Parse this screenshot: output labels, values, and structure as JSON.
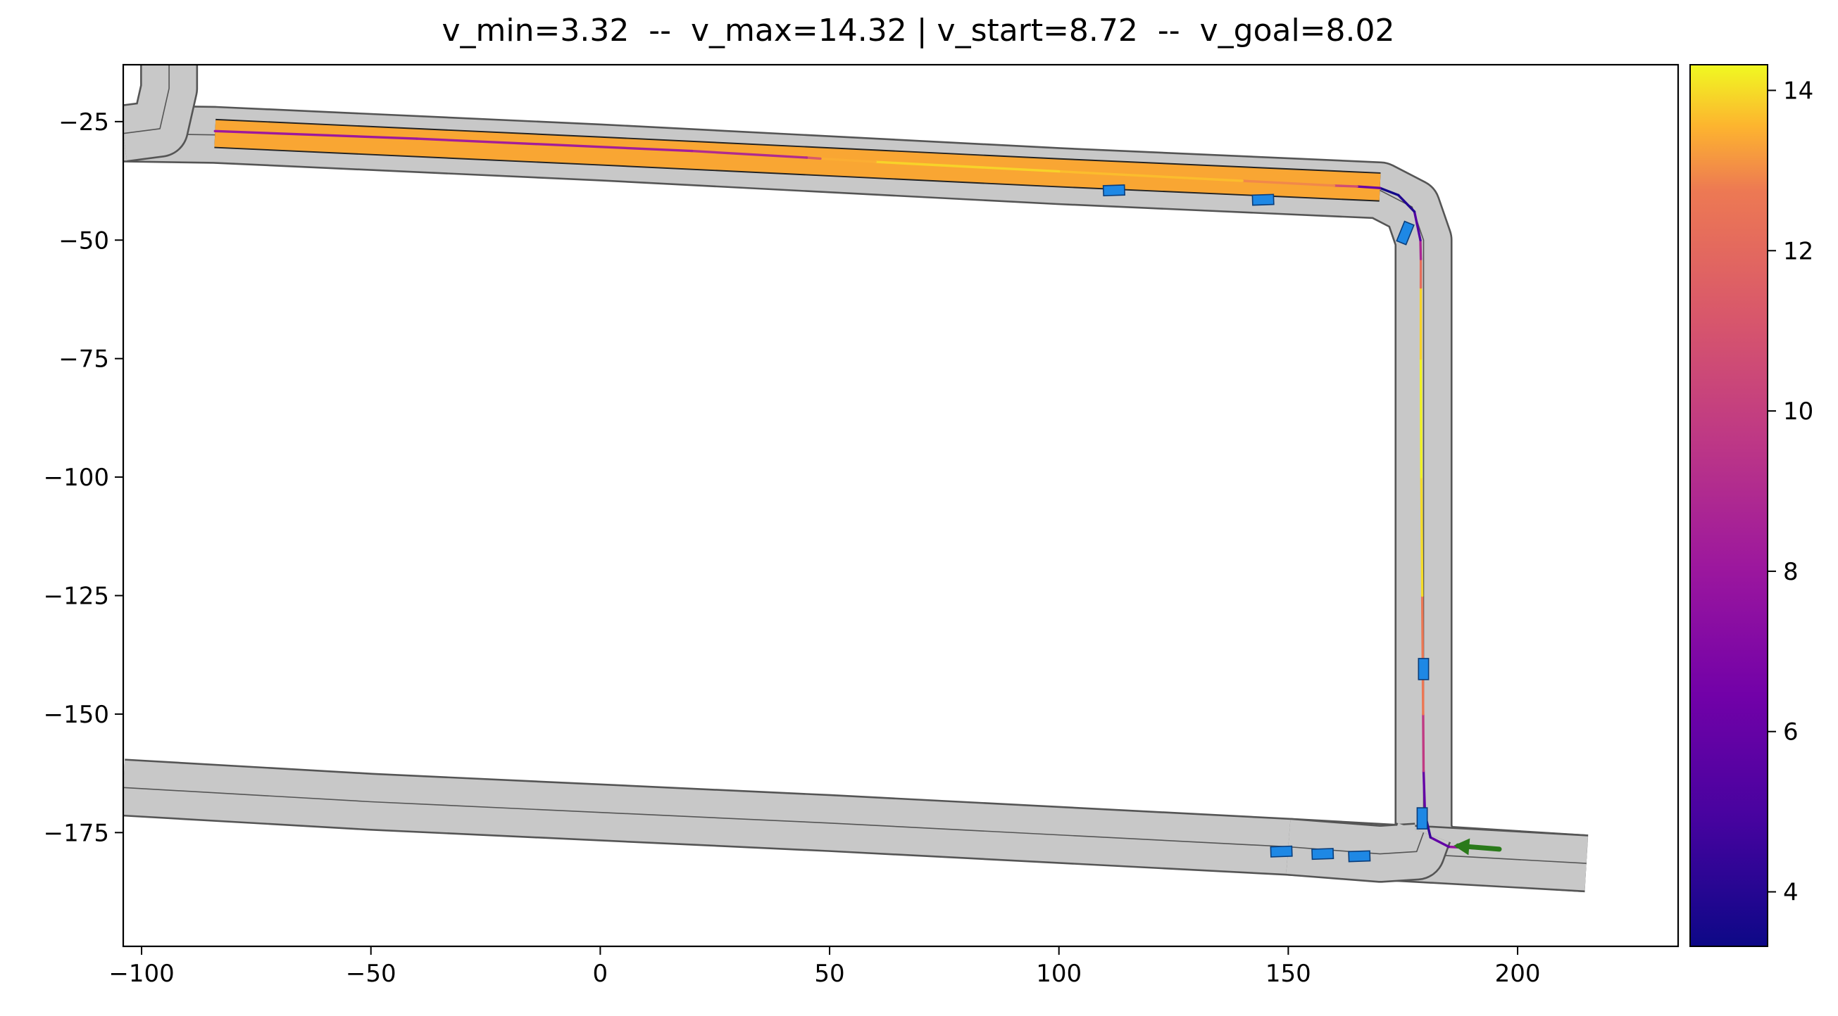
{
  "chart_data": {
    "type": "line",
    "title": "v_min=3.32  --  v_max=14.32 | v_start=8.72  --  v_goal=8.02",
    "xlabel": "",
    "ylabel": "",
    "xlim": [
      -104,
      235
    ],
    "ylim": [
      -199,
      -13
    ],
    "xticks": [
      -100,
      -50,
      0,
      50,
      100,
      150,
      200
    ],
    "yticks": [
      -25,
      -50,
      -75,
      -100,
      -125,
      -150,
      -175
    ],
    "grid": false,
    "colorbar": {
      "cmap": "plasma",
      "vmin": 3.32,
      "vmax": 14.32,
      "ticks": [
        4,
        6,
        8,
        10,
        12,
        14
      ]
    },
    "roads": [
      {
        "name": "upper-road",
        "points": [
          [
            -104,
            -27.5
          ],
          [
            -84,
            -27.8
          ],
          [
            0,
            -31.5
          ],
          [
            100,
            -36.5
          ],
          [
            170,
            -39.5
          ],
          [
            177,
            -43
          ],
          [
            179.5,
            -50
          ],
          [
            179.5,
            -175
          ],
          [
            182,
            -179.5
          ],
          [
            215,
            -181.5
          ]
        ]
      },
      {
        "name": "upper-left-branch",
        "points": [
          [
            -104,
            -27.5
          ],
          [
            -96,
            -26.5
          ],
          [
            -94,
            -18
          ],
          [
            -94,
            -13
          ]
        ]
      },
      {
        "name": "lower-road",
        "points": [
          [
            -104,
            -165.5
          ],
          [
            -50,
            -168.5
          ],
          [
            50,
            -173
          ],
          [
            150,
            -178
          ],
          [
            215,
            -181.5
          ]
        ]
      },
      {
        "name": "right-junction-branch",
        "points": [
          [
            179.5,
            -175
          ],
          [
            178,
            -179
          ],
          [
            170,
            -179.5
          ],
          [
            150,
            -178
          ]
        ]
      }
    ],
    "trajectory": [
      {
        "x": 194,
        "y": -178.5,
        "v": 8.72
      },
      {
        "x": 185,
        "y": -178.0,
        "v": 6.8
      },
      {
        "x": 181,
        "y": -176.0,
        "v": 5.0
      },
      {
        "x": 179.8,
        "y": -171.0,
        "v": 3.9
      },
      {
        "x": 179.5,
        "y": -162.0,
        "v": 8.0
      },
      {
        "x": 179.4,
        "y": -150.0,
        "v": 11.5
      },
      {
        "x": 179.2,
        "y": -125.0,
        "v": 13.8
      },
      {
        "x": 179.0,
        "y": -100.0,
        "v": 14.2
      },
      {
        "x": 178.9,
        "y": -75.0,
        "v": 14.3
      },
      {
        "x": 178.9,
        "y": -60.0,
        "v": 13.5
      },
      {
        "x": 178.9,
        "y": -54.0,
        "v": 11.0
      },
      {
        "x": 178.8,
        "y": -50.0,
        "v": 6.5
      },
      {
        "x": 177.5,
        "y": -44.0,
        "v": 4.2
      },
      {
        "x": 174.0,
        "y": -40.5,
        "v": 3.6
      },
      {
        "x": 170.0,
        "y": -39.0,
        "v": 3.32
      },
      {
        "x": 165.0,
        "y": -38.7,
        "v": 9.0
      },
      {
        "x": 160.0,
        "y": -38.5,
        "v": 12.5
      },
      {
        "x": 140.0,
        "y": -37.5,
        "v": 13.4
      },
      {
        "x": 100.0,
        "y": -35.5,
        "v": 13.9
      },
      {
        "x": 60.0,
        "y": -33.5,
        "v": 13.9
      },
      {
        "x": 48.0,
        "y": -32.8,
        "v": 13.0
      },
      {
        "x": 45.0,
        "y": -32.6,
        "v": 9.5
      },
      {
        "x": 20.0,
        "y": -31.2,
        "v": 8.5
      },
      {
        "x": -40.0,
        "y": -28.6,
        "v": 8.2
      },
      {
        "x": -84.0,
        "y": -27.0,
        "v": 8.02
      }
    ],
    "route_corridor": {
      "color": "#f9a633",
      "points": [
        [
          -84,
          -27.5
        ],
        [
          0,
          -31.2
        ],
        [
          100,
          -35.8
        ],
        [
          170,
          -38.8
        ]
      ]
    },
    "vehicles": [
      {
        "x": 112,
        "y": -39.5,
        "angle": -2
      },
      {
        "x": 144.5,
        "y": -41.5,
        "angle": -2
      },
      {
        "x": 175.5,
        "y": -48.5,
        "angle": -68
      },
      {
        "x": 179.5,
        "y": -140.5,
        "angle": -90
      },
      {
        "x": 179.2,
        "y": -172.0,
        "angle": -90
      },
      {
        "x": 148.5,
        "y": -179.0,
        "angle": -2
      },
      {
        "x": 157.5,
        "y": -179.5,
        "angle": -2
      },
      {
        "x": 165.5,
        "y": -180.0,
        "angle": -2
      }
    ],
    "goal_arrow": {
      "x_from": 196,
      "y_from": -178.5,
      "x_to": 187,
      "y_to": -177.8,
      "color": "#2a7a1a"
    }
  }
}
